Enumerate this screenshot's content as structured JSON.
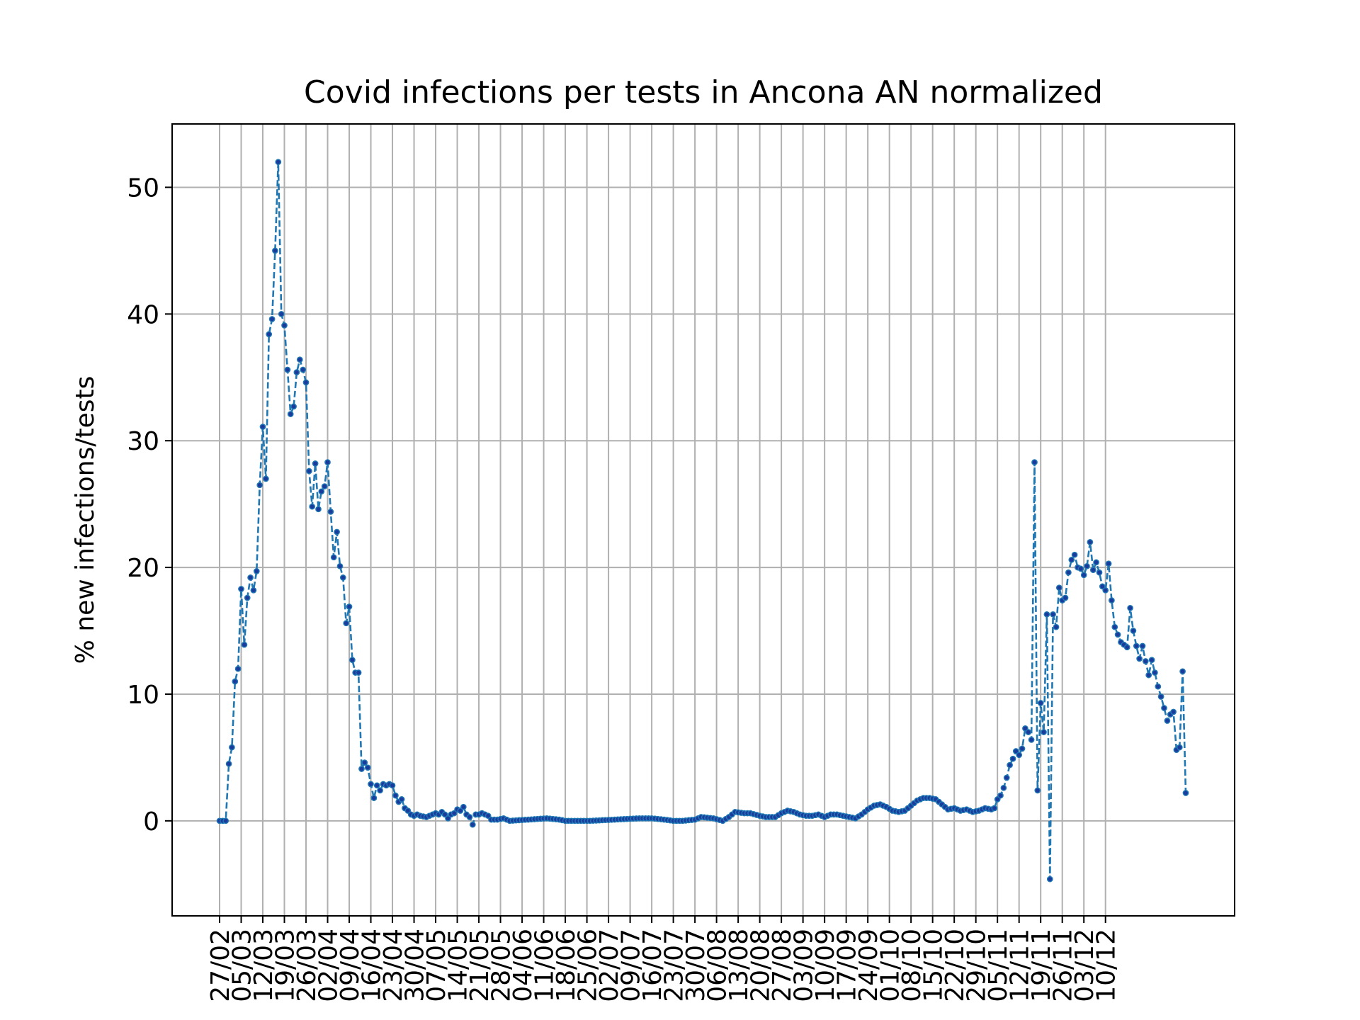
{
  "chart_data": {
    "type": "line",
    "title": "Covid infections per tests in Ancona AN normalized",
    "xlabel": "",
    "ylabel": "% new infections/tests",
    "grid": true,
    "line_style": "dashed",
    "marker": "dot",
    "ylim": [
      -7.5,
      55
    ],
    "yticks": [
      0,
      10,
      20,
      30,
      40,
      50
    ],
    "x_start": "27/02",
    "x_ticks": [
      "27/02",
      "05/03",
      "12/03",
      "19/03",
      "26/03",
      "02/04",
      "09/04",
      "16/04",
      "23/04",
      "30/04",
      "07/05",
      "14/05",
      "21/05",
      "28/05",
      "04/06",
      "11/06",
      "18/06",
      "25/06",
      "02/07",
      "09/07",
      "16/07",
      "23/07",
      "30/07",
      "06/08",
      "13/08",
      "20/08",
      "27/08",
      "03/09",
      "10/09",
      "17/09",
      "24/09",
      "01/10",
      "08/10",
      "15/10",
      "22/10",
      "29/10",
      "05/11",
      "12/11",
      "19/11",
      "26/11",
      "03/12",
      "10/12"
    ],
    "series": [
      {
        "color": "#1f77b4",
        "marker_color": "#1a3a9c",
        "anchors": [
          [
            0,
            0
          ],
          [
            1,
            0
          ],
          [
            2,
            0
          ],
          [
            3,
            4.5
          ],
          [
            4,
            5.8
          ],
          [
            5,
            11
          ],
          [
            6,
            12
          ],
          [
            7,
            18.3
          ],
          [
            8,
            13.9
          ],
          [
            9,
            17.6
          ],
          [
            10,
            19.2
          ],
          [
            11,
            18.2
          ],
          [
            12,
            19.7
          ],
          [
            13,
            26.5
          ],
          [
            14,
            31.1
          ],
          [
            15,
            27
          ],
          [
            16,
            38.4
          ],
          [
            17,
            39.6
          ],
          [
            18,
            45
          ],
          [
            19,
            52
          ],
          [
            20,
            40
          ],
          [
            21,
            39.1
          ],
          [
            22,
            35.6
          ],
          [
            23,
            32.1
          ],
          [
            24,
            32.7
          ],
          [
            25,
            35.4
          ],
          [
            26,
            36.4
          ],
          [
            27,
            35.6
          ],
          [
            28,
            34.6
          ],
          [
            29,
            27.6
          ],
          [
            30,
            24.8
          ],
          [
            31,
            28.2
          ],
          [
            32,
            24.6
          ],
          [
            33,
            26
          ],
          [
            34,
            26.4
          ],
          [
            35,
            28.3
          ],
          [
            36,
            24.4
          ],
          [
            37,
            20.8
          ],
          [
            38,
            22.8
          ],
          [
            39,
            20.1
          ],
          [
            40,
            19.2
          ],
          [
            41,
            15.6
          ],
          [
            42,
            16.9
          ],
          [
            43,
            12.7
          ],
          [
            44,
            11.7
          ],
          [
            45,
            11.7
          ],
          [
            46,
            4.1
          ],
          [
            47,
            4.6
          ],
          [
            48,
            4.2
          ],
          [
            49,
            2.9
          ],
          [
            50,
            1.8
          ],
          [
            51,
            2.8
          ],
          [
            52,
            2.4
          ],
          [
            53,
            2.9
          ],
          [
            54,
            2.8
          ],
          [
            55,
            2.9
          ],
          [
            56,
            2.8
          ],
          [
            57,
            2
          ],
          [
            58,
            1.5
          ],
          [
            59,
            1.7
          ],
          [
            60,
            1
          ],
          [
            61,
            0.8
          ],
          [
            62,
            0.5
          ],
          [
            63,
            0.4
          ],
          [
            64,
            0.5
          ],
          [
            65,
            0.4
          ],
          [
            66,
            0.35
          ],
          [
            67,
            0.3
          ],
          [
            68,
            0.4
          ],
          [
            69,
            0.5
          ],
          [
            70,
            0.6
          ],
          [
            71,
            0.5
          ],
          [
            72,
            0.7
          ],
          [
            73,
            0.5
          ],
          [
            74,
            0.2
          ],
          [
            75,
            0.5
          ],
          [
            76,
            0.6
          ],
          [
            77,
            0.9
          ],
          [
            78,
            0.8
          ],
          [
            79,
            1.1
          ],
          [
            80,
            0.5
          ],
          [
            81,
            0.3
          ],
          [
            82,
            -0.3
          ],
          [
            83,
            0.5
          ],
          [
            84,
            0.5
          ],
          [
            85,
            0.6
          ],
          [
            86,
            0.5
          ],
          [
            87,
            0.4
          ],
          [
            88,
            0.1
          ],
          [
            90,
            0.1
          ],
          [
            92,
            0.2
          ],
          [
            94,
            0
          ],
          [
            100,
            0.1
          ],
          [
            106,
            0.2
          ],
          [
            110,
            0.1
          ],
          [
            112,
            0
          ],
          [
            120,
            0
          ],
          [
            128,
            0.1
          ],
          [
            136,
            0.2
          ],
          [
            140,
            0.2
          ],
          [
            144,
            0.1
          ],
          [
            147,
            0
          ],
          [
            150,
            0
          ],
          [
            154,
            0.1
          ],
          [
            156,
            0.3
          ],
          [
            160,
            0.2
          ],
          [
            163,
            0
          ],
          [
            165,
            0.3
          ],
          [
            167,
            0.7
          ],
          [
            170,
            0.6
          ],
          [
            172,
            0.6
          ],
          [
            175,
            0.4
          ],
          [
            177,
            0.3
          ],
          [
            180,
            0.3
          ],
          [
            182,
            0.6
          ],
          [
            184,
            0.8
          ],
          [
            186,
            0.7
          ],
          [
            188,
            0.5
          ],
          [
            190,
            0.4
          ],
          [
            192,
            0.4
          ],
          [
            194,
            0.5
          ],
          [
            196,
            0.3
          ],
          [
            198,
            0.5
          ],
          [
            200,
            0.5
          ],
          [
            202,
            0.4
          ],
          [
            204,
            0.3
          ],
          [
            206,
            0.2
          ],
          [
            208,
            0.5
          ],
          [
            210,
            0.9
          ],
          [
            212,
            1.2
          ],
          [
            214,
            1.3
          ],
          [
            216,
            1.1
          ],
          [
            218,
            0.8
          ],
          [
            220,
            0.7
          ],
          [
            222,
            0.8
          ],
          [
            224,
            1.2
          ],
          [
            226,
            1.6
          ],
          [
            228,
            1.8
          ],
          [
            230,
            1.8
          ],
          [
            232,
            1.7
          ],
          [
            234,
            1.3
          ],
          [
            236,
            0.9
          ],
          [
            238,
            1
          ],
          [
            240,
            0.8
          ],
          [
            242,
            0.9
          ],
          [
            244,
            0.7
          ],
          [
            246,
            0.8
          ],
          [
            248,
            1
          ],
          [
            250,
            0.9
          ],
          [
            251,
            1
          ],
          [
            252,
            1.7
          ],
          [
            253,
            2
          ],
          [
            254,
            2.6
          ],
          [
            255,
            3.4
          ],
          [
            256,
            4.4
          ],
          [
            257,
            4.9
          ],
          [
            258,
            5.5
          ],
          [
            259,
            5.2
          ],
          [
            260,
            5.7
          ],
          [
            261,
            7.3
          ],
          [
            262,
            7
          ],
          [
            263,
            6.4
          ],
          [
            264,
            28.3
          ],
          [
            265,
            2.4
          ],
          [
            266,
            9.3
          ],
          [
            267,
            7
          ],
          [
            268,
            16.3
          ],
          [
            269,
            -4.6
          ],
          [
            270,
            16.3
          ],
          [
            271,
            15.3
          ],
          [
            272,
            18.4
          ],
          [
            273,
            17.4
          ],
          [
            274,
            17.6
          ],
          [
            275,
            19.6
          ],
          [
            276,
            20.6
          ],
          [
            277,
            21
          ],
          [
            278,
            20
          ],
          [
            279,
            19.9
          ],
          [
            280,
            19.4
          ],
          [
            281,
            20.1
          ],
          [
            282,
            22
          ],
          [
            283,
            19.8
          ],
          [
            284,
            20.4
          ],
          [
            285,
            19.6
          ],
          [
            286,
            18.5
          ],
          [
            287,
            18.2
          ],
          [
            288,
            20.3
          ],
          [
            289,
            17.4
          ],
          [
            290,
            15.3
          ],
          [
            291,
            14.7
          ],
          [
            292,
            14.1
          ],
          [
            293,
            13.9
          ],
          [
            294,
            13.7
          ],
          [
            295,
            16.8
          ],
          [
            296,
            15
          ],
          [
            297,
            13.8
          ],
          [
            298,
            12.8
          ],
          [
            299,
            13.8
          ],
          [
            300,
            12.6
          ],
          [
            301,
            11.5
          ],
          [
            302,
            12.7
          ],
          [
            303,
            11.7
          ],
          [
            304,
            10.6
          ],
          [
            305,
            9.8
          ],
          [
            306,
            8.9
          ],
          [
            307,
            7.9
          ],
          [
            308,
            8.4
          ],
          [
            309,
            8.6
          ],
          [
            310,
            5.6
          ],
          [
            311,
            5.8
          ],
          [
            312,
            11.8
          ],
          [
            313,
            2.2
          ]
        ]
      }
    ]
  }
}
